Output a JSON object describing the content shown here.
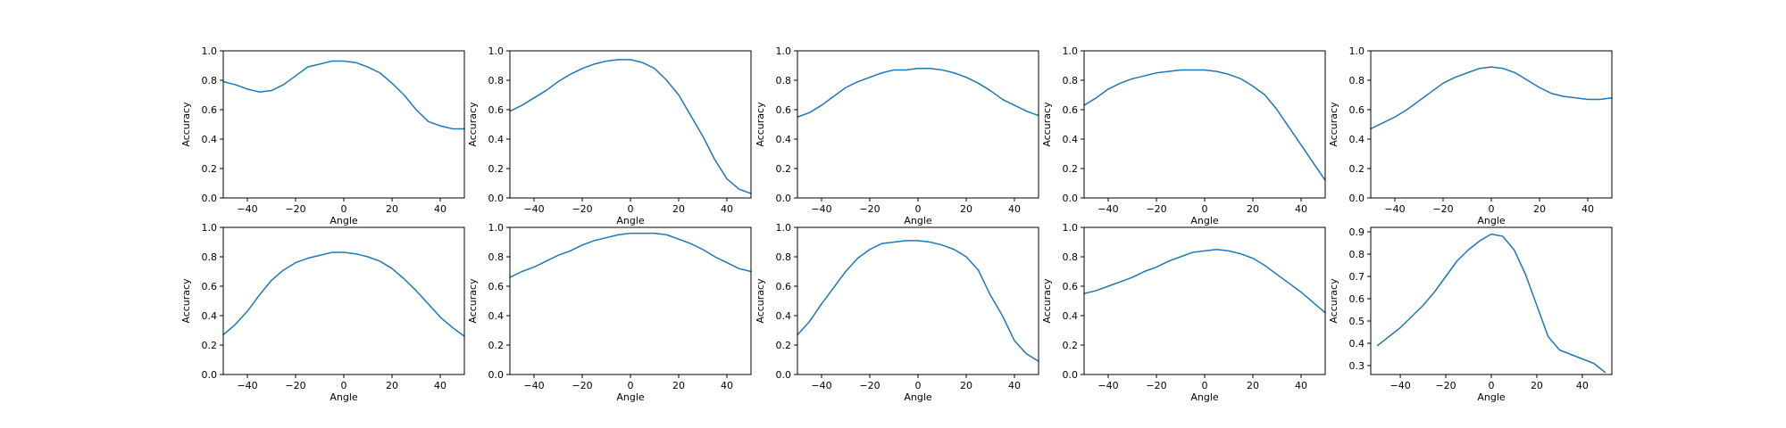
{
  "colors": {
    "series": "#1f77b4",
    "axis": "#000000",
    "background": "#ffffff"
  },
  "chart_data": [
    {
      "type": "line",
      "xlabel": "Angle",
      "ylabel": "Accuracy",
      "xlim": [
        -50,
        50
      ],
      "ylim": [
        0,
        1.0
      ],
      "xticks": [
        -40,
        -20,
        0,
        20,
        40
      ],
      "yticks": [
        0.0,
        0.2,
        0.4,
        0.6,
        0.8,
        1.0
      ],
      "x": [
        -50,
        -45,
        -40,
        -35,
        -30,
        -25,
        -20,
        -15,
        -10,
        -5,
        0,
        5,
        10,
        15,
        20,
        25,
        30,
        35,
        40,
        45,
        50
      ],
      "values": [
        0.79,
        0.77,
        0.74,
        0.72,
        0.73,
        0.77,
        0.83,
        0.89,
        0.91,
        0.93,
        0.93,
        0.92,
        0.89,
        0.85,
        0.78,
        0.7,
        0.6,
        0.52,
        0.49,
        0.47,
        0.47
      ],
      "grid": false
    },
    {
      "type": "line",
      "xlabel": "Angle",
      "ylabel": "Accuracy",
      "xlim": [
        -50,
        50
      ],
      "ylim": [
        0,
        1.0
      ],
      "xticks": [
        -40,
        -20,
        0,
        20,
        40
      ],
      "yticks": [
        0.0,
        0.2,
        0.4,
        0.6,
        0.8,
        1.0
      ],
      "x": [
        -50,
        -45,
        -40,
        -35,
        -30,
        -25,
        -20,
        -15,
        -10,
        -5,
        0,
        5,
        10,
        15,
        20,
        25,
        30,
        35,
        40,
        45,
        50
      ],
      "values": [
        0.59,
        0.63,
        0.68,
        0.73,
        0.79,
        0.84,
        0.88,
        0.91,
        0.93,
        0.94,
        0.94,
        0.92,
        0.88,
        0.8,
        0.7,
        0.56,
        0.42,
        0.26,
        0.13,
        0.06,
        0.03
      ],
      "grid": false
    },
    {
      "type": "line",
      "xlabel": "Angle",
      "ylabel": "Accuracy",
      "xlim": [
        -50,
        50
      ],
      "ylim": [
        0,
        1.0
      ],
      "xticks": [
        -40,
        -20,
        0,
        20,
        40
      ],
      "yticks": [
        0.0,
        0.2,
        0.4,
        0.6,
        0.8,
        1.0
      ],
      "x": [
        -50,
        -45,
        -40,
        -35,
        -30,
        -25,
        -20,
        -15,
        -10,
        -5,
        0,
        5,
        10,
        15,
        20,
        25,
        30,
        35,
        40,
        45,
        50
      ],
      "values": [
        0.55,
        0.58,
        0.63,
        0.69,
        0.75,
        0.79,
        0.82,
        0.85,
        0.87,
        0.87,
        0.88,
        0.88,
        0.87,
        0.85,
        0.82,
        0.78,
        0.73,
        0.67,
        0.63,
        0.59,
        0.56
      ],
      "grid": false
    },
    {
      "type": "line",
      "xlabel": "Angle",
      "ylabel": "Accuracy",
      "xlim": [
        -50,
        50
      ],
      "ylim": [
        0,
        1.0
      ],
      "xticks": [
        -40,
        -20,
        0,
        20,
        40
      ],
      "yticks": [
        0.0,
        0.2,
        0.4,
        0.6,
        0.8,
        1.0
      ],
      "x": [
        -50,
        -45,
        -40,
        -35,
        -30,
        -25,
        -20,
        -15,
        -10,
        -5,
        0,
        5,
        10,
        15,
        20,
        25,
        30,
        35,
        40,
        45,
        50
      ],
      "values": [
        0.63,
        0.68,
        0.74,
        0.78,
        0.81,
        0.83,
        0.85,
        0.86,
        0.87,
        0.87,
        0.87,
        0.86,
        0.84,
        0.81,
        0.76,
        0.7,
        0.6,
        0.48,
        0.36,
        0.24,
        0.12
      ],
      "grid": false
    },
    {
      "type": "line",
      "xlabel": "Angle",
      "ylabel": "Accuracy",
      "xlim": [
        -50,
        50
      ],
      "ylim": [
        0,
        1.0
      ],
      "xticks": [
        -40,
        -20,
        0,
        20,
        40
      ],
      "yticks": [
        0.0,
        0.2,
        0.4,
        0.6,
        0.8,
        1.0
      ],
      "x": [
        -50,
        -45,
        -40,
        -35,
        -30,
        -25,
        -20,
        -15,
        -10,
        -5,
        0,
        5,
        10,
        15,
        20,
        25,
        30,
        35,
        40,
        45,
        50
      ],
      "values": [
        0.47,
        0.51,
        0.55,
        0.6,
        0.66,
        0.72,
        0.78,
        0.82,
        0.85,
        0.88,
        0.89,
        0.88,
        0.85,
        0.8,
        0.75,
        0.71,
        0.69,
        0.68,
        0.67,
        0.67,
        0.68
      ],
      "grid": false
    },
    {
      "type": "line",
      "xlabel": "Angle",
      "ylabel": "Accuracy",
      "xlim": [
        -50,
        50
      ],
      "ylim": [
        0,
        1.0
      ],
      "xticks": [
        -40,
        -20,
        0,
        20,
        40
      ],
      "yticks": [
        0.0,
        0.2,
        0.4,
        0.6,
        0.8,
        1.0
      ],
      "x": [
        -50,
        -45,
        -40,
        -35,
        -30,
        -25,
        -20,
        -15,
        -10,
        -5,
        0,
        5,
        10,
        15,
        20,
        25,
        30,
        35,
        40,
        45,
        50
      ],
      "values": [
        0.27,
        0.34,
        0.43,
        0.54,
        0.64,
        0.71,
        0.76,
        0.79,
        0.81,
        0.83,
        0.83,
        0.82,
        0.8,
        0.77,
        0.72,
        0.65,
        0.57,
        0.48,
        0.39,
        0.32,
        0.26
      ],
      "grid": false
    },
    {
      "type": "line",
      "xlabel": "Angle",
      "ylabel": "Accuracy",
      "xlim": [
        -50,
        50
      ],
      "ylim": [
        0,
        1.0
      ],
      "xticks": [
        -40,
        -20,
        0,
        20,
        40
      ],
      "yticks": [
        0.0,
        0.2,
        0.4,
        0.6,
        0.8,
        1.0
      ],
      "x": [
        -50,
        -45,
        -40,
        -35,
        -30,
        -25,
        -20,
        -15,
        -10,
        -5,
        0,
        5,
        10,
        15,
        20,
        25,
        30,
        35,
        40,
        45,
        50
      ],
      "values": [
        0.66,
        0.7,
        0.73,
        0.77,
        0.81,
        0.84,
        0.88,
        0.91,
        0.93,
        0.95,
        0.96,
        0.96,
        0.96,
        0.95,
        0.92,
        0.89,
        0.85,
        0.8,
        0.76,
        0.72,
        0.7
      ],
      "grid": false
    },
    {
      "type": "line",
      "xlabel": "Angle",
      "ylabel": "Accuracy",
      "xlim": [
        -50,
        50
      ],
      "ylim": [
        0,
        1.0
      ],
      "xticks": [
        -40,
        -20,
        0,
        20,
        40
      ],
      "yticks": [
        0.0,
        0.2,
        0.4,
        0.6,
        0.8,
        1.0
      ],
      "x": [
        -50,
        -45,
        -40,
        -35,
        -30,
        -25,
        -20,
        -15,
        -10,
        -5,
        0,
        5,
        10,
        15,
        20,
        25,
        30,
        35,
        40,
        45,
        50
      ],
      "values": [
        0.27,
        0.36,
        0.48,
        0.59,
        0.7,
        0.79,
        0.85,
        0.89,
        0.9,
        0.91,
        0.91,
        0.9,
        0.88,
        0.85,
        0.8,
        0.71,
        0.54,
        0.4,
        0.23,
        0.14,
        0.09
      ],
      "grid": false
    },
    {
      "type": "line",
      "xlabel": "Angle",
      "ylabel": "Accuracy",
      "xlim": [
        -50,
        50
      ],
      "ylim": [
        0,
        1.0
      ],
      "xticks": [
        -40,
        -20,
        0,
        20,
        40
      ],
      "yticks": [
        0.0,
        0.2,
        0.4,
        0.6,
        0.8,
        1.0
      ],
      "x": [
        -50,
        -45,
        -40,
        -35,
        -30,
        -25,
        -20,
        -15,
        -10,
        -5,
        0,
        5,
        10,
        15,
        20,
        25,
        30,
        35,
        40,
        45,
        50
      ],
      "values": [
        0.55,
        0.57,
        0.6,
        0.63,
        0.66,
        0.7,
        0.73,
        0.77,
        0.8,
        0.83,
        0.84,
        0.85,
        0.84,
        0.82,
        0.79,
        0.74,
        0.68,
        0.62,
        0.56,
        0.49,
        0.42
      ],
      "grid": false
    },
    {
      "type": "line",
      "xlabel": "Angle",
      "ylabel": "Accuracy",
      "xlim": [
        -53,
        53
      ],
      "ylim": [
        0.26,
        0.92
      ],
      "xticks": [
        -40,
        -20,
        0,
        20,
        40
      ],
      "yticks": [
        0.3,
        0.4,
        0.5,
        0.6,
        0.7,
        0.8,
        0.9
      ],
      "x": [
        -50,
        -45,
        -40,
        -35,
        -30,
        -25,
        -20,
        -15,
        -10,
        -5,
        0,
        5,
        10,
        15,
        20,
        25,
        30,
        35,
        40,
        45,
        50
      ],
      "values": [
        0.39,
        0.43,
        0.47,
        0.52,
        0.57,
        0.63,
        0.7,
        0.77,
        0.82,
        0.86,
        0.89,
        0.88,
        0.82,
        0.71,
        0.57,
        0.43,
        0.37,
        0.35,
        0.33,
        0.31,
        0.27
      ],
      "grid": false
    }
  ]
}
